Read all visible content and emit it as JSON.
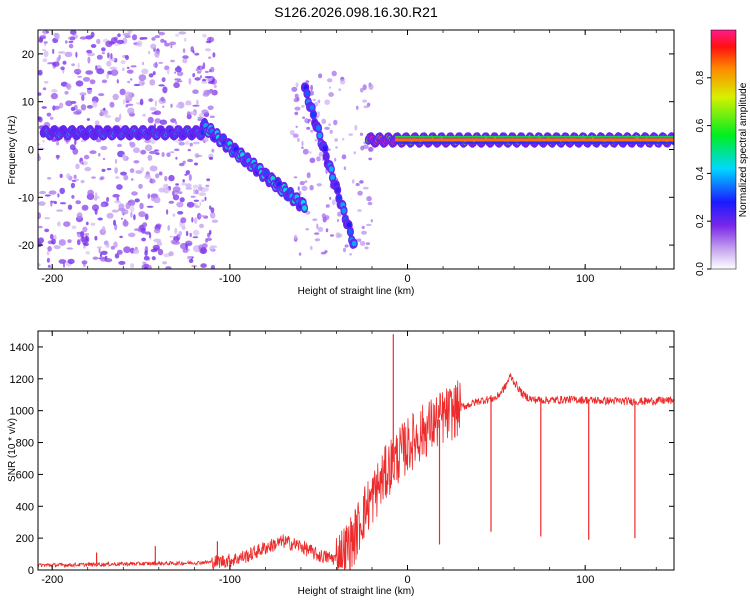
{
  "figure_title": "S126.2026.098.16.30.R21",
  "chart_data": [
    {
      "type": "heatmap",
      "title": "S126.2026.098.16.30.R21",
      "xlabel": "Height of straight line (km)",
      "ylabel": "Frequency (Hz)",
      "xlim": [
        -208,
        150
      ],
      "ylim": [
        -25,
        25
      ],
      "xticks": [
        -200,
        -100,
        0,
        100
      ],
      "yticks": [
        -20,
        -10,
        0,
        10,
        20
      ],
      "colorbar": {
        "label": "Normalized spectral amplitude",
        "range": [
          0,
          1
        ],
        "ticks": [
          0.0,
          0.2,
          0.4,
          0.6,
          0.8
        ]
      },
      "features": [
        {
          "name": "low-altitude band",
          "x": [
            -205,
            -115
          ],
          "freq": 3.5,
          "amplitude": 0.3
        },
        {
          "name": "dispersive descending branch",
          "x": [
            -115,
            -58
          ],
          "freq_start": 5,
          "freq_end": -12,
          "amplitude": 0.35
        },
        {
          "name": "upper branch",
          "x": [
            -58,
            -30
          ],
          "freq_start": 13,
          "freq_end": -20,
          "amplitude": 0.3
        },
        {
          "name": "main high-altitude band",
          "x": [
            -22,
            150
          ],
          "freq": 2,
          "amplitude": 0.85
        }
      ]
    },
    {
      "type": "line",
      "xlabel": "Height of straight line (km)",
      "ylabel": "SNR (10 * v/v)",
      "xlim": [
        -208,
        150
      ],
      "ylim": [
        0,
        1500
      ],
      "xticks": [
        -200,
        -100,
        0,
        100
      ],
      "yticks": [
        0,
        200,
        400,
        600,
        800,
        1000,
        1200,
        1400
      ],
      "color": "#ee2a2a",
      "series": [
        {
          "name": "SNR",
          "x": [
            -208,
            -190,
            -175,
            -160,
            -145,
            -130,
            -120,
            -110,
            -100,
            -90,
            -80,
            -70,
            -60,
            -50,
            -40,
            -35,
            -30,
            -25,
            -20,
            -15,
            -10,
            -5,
            0,
            10,
            20,
            30,
            40,
            50,
            55,
            58,
            60,
            65,
            70,
            80,
            90,
            100,
            110,
            120,
            130,
            140,
            150
          ],
          "y": [
            30,
            32,
            35,
            38,
            40,
            42,
            45,
            50,
            60,
            90,
            140,
            180,
            150,
            90,
            70,
            120,
            200,
            350,
            450,
            550,
            650,
            720,
            780,
            880,
            960,
            1020,
            1060,
            1080,
            1150,
            1220,
            1180,
            1100,
            1070,
            1065,
            1070,
            1068,
            1062,
            1060,
            1058,
            1062,
            1065
          ]
        }
      ],
      "spikes": [
        {
          "x": -175,
          "y": 110
        },
        {
          "x": -142,
          "y": 150
        },
        {
          "x": -107,
          "y": 180
        },
        {
          "x": -8,
          "y": 1480
        },
        {
          "x": 18,
          "y": 160
        },
        {
          "x": 47,
          "y": 240
        },
        {
          "x": 75,
          "y": 210
        },
        {
          "x": 102,
          "y": 190
        },
        {
          "x": 128,
          "y": 200
        }
      ]
    }
  ]
}
